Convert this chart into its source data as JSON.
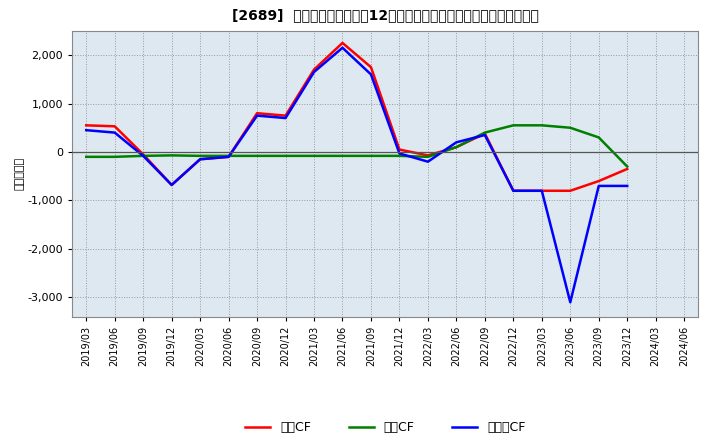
{
  "title": "[2689]  キャッシュフローの12か月移動合計の対前年同期増減額の推移",
  "ylabel": "（百万円）",
  "background_color": "#ffffff",
  "plot_bg_color": "#dde8f0",
  "grid_color": "#999999",
  "x_labels": [
    "2019/03",
    "2019/06",
    "2019/09",
    "2019/12",
    "2020/03",
    "2020/06",
    "2020/09",
    "2020/12",
    "2021/03",
    "2021/06",
    "2021/09",
    "2021/12",
    "2022/03",
    "2022/06",
    "2022/09",
    "2022/12",
    "2023/03",
    "2023/06",
    "2023/09",
    "2023/12",
    "2024/03",
    "2024/06"
  ],
  "operating_cf": [
    550,
    530,
    -50,
    -680,
    -150,
    -100,
    800,
    750,
    1700,
    2250,
    1750,
    50,
    -70,
    100,
    380,
    -800,
    -800,
    -800,
    -600,
    -350,
    null,
    null
  ],
  "investing_cf": [
    -100,
    -100,
    -80,
    -70,
    -80,
    -80,
    -80,
    -80,
    -80,
    -80,
    -80,
    -80,
    -100,
    100,
    400,
    550,
    550,
    500,
    300,
    -300,
    null,
    null
  ],
  "free_cf": [
    450,
    400,
    -80,
    -680,
    -150,
    -100,
    750,
    700,
    1650,
    2150,
    1600,
    -30,
    -200,
    200,
    350,
    -800,
    -800,
    -3100,
    -700,
    -700,
    null,
    null
  ],
  "ylim": [
    -3400,
    2500
  ],
  "yticks": [
    -3000,
    -2000,
    -1000,
    0,
    1000,
    2000
  ],
  "line_colors": {
    "operating": "#ff0000",
    "investing": "#008000",
    "free": "#0000ff"
  },
  "legend_labels": [
    "営業CF",
    "投資CF",
    "フリーCF"
  ]
}
